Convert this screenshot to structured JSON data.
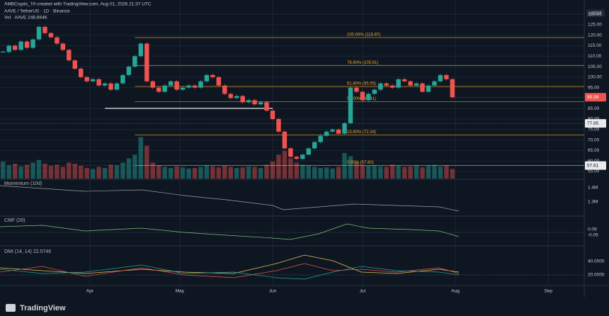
{
  "header": {
    "credit": "AMBCrypto_TA created with TradingView.com, Aug 01, 2026 21:37 UTC",
    "symbol": "AAVE / TetherUS · 1D · Binance",
    "volume": "Vol · AAVE  248.664K"
  },
  "chart_data": {
    "type": "candlestick",
    "currency": "USDT",
    "x": [
      2,
      4,
      6,
      8,
      10,
      12,
      14,
      16,
      18,
      20,
      22,
      24,
      26,
      28,
      30,
      32,
      34,
      36,
      38,
      40,
      42,
      44,
      46,
      48,
      50,
      52,
      54,
      56,
      58,
      60,
      62,
      64,
      66,
      68,
      70,
      72,
      74,
      76,
      78,
      80,
      82,
      84,
      86,
      88,
      90,
      92,
      94,
      96,
      98,
      100,
      102,
      104,
      106,
      108,
      110,
      112,
      114,
      116,
      118,
      120,
      122,
      124,
      126,
      128,
      130,
      132,
      134,
      136,
      138,
      140,
      142,
      144,
      146,
      148,
      150,
      152
    ],
    "values": [
      112,
      115,
      113,
      117,
      114,
      118,
      124,
      121,
      119,
      116,
      113,
      108,
      104,
      100,
      98,
      99,
      96,
      97,
      94,
      97,
      101,
      105,
      110,
      116,
      98,
      95,
      93,
      96,
      98,
      94,
      95,
      96,
      95,
      98,
      101,
      100,
      96,
      92,
      90,
      91,
      88,
      89,
      87,
      88,
      84,
      80,
      74,
      66,
      62,
      61,
      63,
      66,
      69,
      72,
      74,
      75,
      73,
      78,
      95,
      93,
      89,
      92,
      94,
      97,
      96,
      95,
      99,
      98,
      96,
      97,
      93,
      96,
      98,
      101,
      99,
      90.38
    ],
    "volume": [
      320,
      250,
      280,
      230,
      260,
      300,
      350,
      280,
      240,
      260,
      220,
      300,
      280,
      240,
      200,
      180,
      220,
      200,
      260,
      250,
      300,
      380,
      450,
      780,
      620,
      300,
      250,
      220,
      200,
      230,
      210,
      190,
      200,
      220,
      250,
      230,
      210,
      240,
      220,
      200,
      210,
      230,
      220,
      200,
      260,
      320,
      450,
      520,
      380,
      300,
      260,
      240,
      220,
      200,
      210,
      190,
      220,
      480,
      420,
      300,
      260,
      240,
      250,
      230,
      220,
      260,
      240,
      220,
      230,
      250,
      210,
      240,
      260,
      230,
      250,
      180
    ],
    "volume_lim": [
      0,
      800
    ],
    "up_color": "#26a69a",
    "down_color": "#ef5350",
    "last_price_label": "90.38",
    "xlim": [
      1,
      196
    ],
    "xticks": [
      {
        "value": 31,
        "label": "Apr"
      },
      {
        "value": 61,
        "label": "May"
      },
      {
        "value": 92,
        "label": "Jun"
      },
      {
        "value": 122,
        "label": "Jul"
      },
      {
        "value": 153,
        "label": "Aug"
      },
      {
        "value": 184,
        "label": "Sep"
      }
    ],
    "ylim": [
      51.6,
      136.8
    ],
    "yticks": [
      {
        "value": 55,
        "label": "55.00"
      },
      {
        "value": 60,
        "label": "60.00"
      },
      {
        "value": 65,
        "label": "65.00"
      },
      {
        "value": 70,
        "label": "70.00"
      },
      {
        "value": 75,
        "label": "75.00"
      },
      {
        "value": 80,
        "label": "80.00"
      },
      {
        "value": 85,
        "label": "85.00"
      },
      {
        "value": 95,
        "label": "95.00"
      },
      {
        "value": 100,
        "label": "100.00"
      },
      {
        "value": 105,
        "label": "105.00"
      },
      {
        "value": 110,
        "label": "110.00"
      },
      {
        "value": 115,
        "label": "115.00"
      },
      {
        "value": 120,
        "label": "120.00"
      },
      {
        "value": 125,
        "label": "125.00"
      },
      {
        "value": 130,
        "label": "130.00"
      }
    ],
    "levels": [
      {
        "value": 118.87,
        "label": "100.00% (118.87)"
      },
      {
        "value": 105.61,
        "label": "78.60% (105.61)"
      },
      {
        "value": 95.55,
        "label": "61.80% (95.55)"
      },
      {
        "value": 88.31,
        "label": "50.00% (88.31)"
      },
      {
        "value": 72.34,
        "label": "23.60% (72.34)"
      },
      {
        "value": 57.8,
        "label": "0.00% (57.80)"
      }
    ],
    "level_color": "#f5a623",
    "level_start": 46,
    "support": {
      "value": 85.1,
      "start": 36,
      "end": 92
    },
    "markers": [
      {
        "value": 77.95,
        "label": "77.95"
      },
      {
        "value": 57.81,
        "label": "57.81"
      }
    ]
  },
  "panels": [
    {
      "label": "Momentum (10d)",
      "ticks": [
        "1.4M",
        "1.3M"
      ]
    },
    {
      "label": "CMF (20)",
      "ticks": [
        "0.09",
        "-0.05"
      ]
    },
    {
      "label": "DMI (14, 14)  22.5746",
      "ticks": [
        "40.0000",
        "20.0000"
      ]
    }
  ],
  "footer": "TradingView"
}
